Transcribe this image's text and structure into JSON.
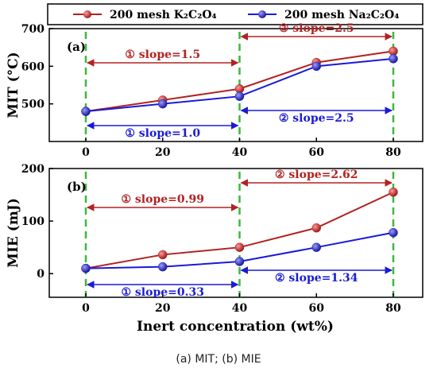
{
  "caption": "(a) MIT; (b) MIE",
  "colors": {
    "k2c2o4": "#b22222",
    "na2c2o4": "#1a1ad6",
    "guides": "#3cb93c"
  },
  "legend": {
    "k2c2o4_label": "200 mesh K₂C₂O₄",
    "na2c2o4_label": "200 mesh Na₂C₂O₄"
  },
  "chart_data": [
    {
      "type": "line",
      "panel_label": "(a)",
      "xlabel": "",
      "ylabel": "MIT (°C)",
      "x": [
        0,
        20,
        40,
        60,
        80
      ],
      "xticks": [
        "0",
        "20",
        "40",
        "60",
        "80"
      ],
      "ylim": [
        400,
        700
      ],
      "yticks": [
        "500",
        "600",
        "700"
      ],
      "series": [
        {
          "name": "200 mesh K₂C₂O₄",
          "values": [
            480,
            510,
            540,
            610,
            640
          ]
        },
        {
          "name": "200 mesh Na₂C₂O₄",
          "values": [
            480,
            500,
            520,
            600,
            620
          ]
        }
      ],
      "annotations": [
        {
          "text": "① slope=1.5",
          "series": "k"
        },
        {
          "text": "② slope=2.5",
          "series": "k"
        },
        {
          "text": "① slope=1.0",
          "series": "na"
        },
        {
          "text": "② slope=2.5",
          "series": "na"
        }
      ]
    },
    {
      "type": "line",
      "panel_label": "(b)",
      "xlabel": "Inert concentration (wt%)",
      "ylabel": "MIE (mJ)",
      "x": [
        0,
        20,
        40,
        60,
        80
      ],
      "xticks": [
        "0",
        "20",
        "40",
        "60",
        "80"
      ],
      "ylim": [
        -45,
        200
      ],
      "yticks": [
        "0",
        "100",
        "200"
      ],
      "series": [
        {
          "name": "200 mesh K₂C₂O₄",
          "values": [
            10,
            36,
            50,
            87,
            155
          ]
        },
        {
          "name": "200 mesh Na₂C₂O₄",
          "values": [
            10,
            13,
            23,
            50,
            78
          ]
        }
      ],
      "annotations": [
        {
          "text": "① slope=0.99",
          "series": "k"
        },
        {
          "text": "② slope=2.62",
          "series": "k"
        },
        {
          "text": "① slope=0.33",
          "series": "na"
        },
        {
          "text": "② slope=1.34",
          "series": "na"
        }
      ]
    }
  ]
}
